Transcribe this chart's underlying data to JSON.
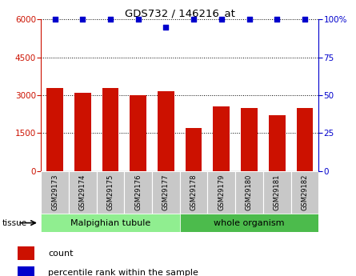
{
  "title": "GDS732 / 146216_at",
  "samples": [
    "GSM29173",
    "GSM29174",
    "GSM29175",
    "GSM29176",
    "GSM29177",
    "GSM29178",
    "GSM29179",
    "GSM29180",
    "GSM29181",
    "GSM29182"
  ],
  "counts": [
    3300,
    3100,
    3300,
    3000,
    3150,
    1700,
    2550,
    2500,
    2200,
    2500
  ],
  "percentiles": [
    100,
    100,
    100,
    100,
    95,
    100,
    100,
    100,
    100,
    100
  ],
  "tissue_groups": [
    {
      "label": "Malpighian tubule",
      "start": 0,
      "end": 5,
      "color": "#90EE90"
    },
    {
      "label": "whole organism",
      "start": 5,
      "end": 10,
      "color": "#4CBB4C"
    }
  ],
  "bar_color": "#CC1100",
  "percentile_color": "#0000CC",
  "ylim_left": [
    0,
    6000
  ],
  "ylim_right": [
    0,
    100
  ],
  "yticks_left": [
    0,
    1500,
    3000,
    4500,
    6000
  ],
  "yticks_right": [
    0,
    25,
    50,
    75,
    100
  ],
  "legend_count_label": "count",
  "legend_pct_label": "percentile rank within the sample",
  "tissue_label": "tissue",
  "bar_width": 0.6,
  "sample_box_color": "#C8C8C8",
  "white": "#FFFFFF"
}
